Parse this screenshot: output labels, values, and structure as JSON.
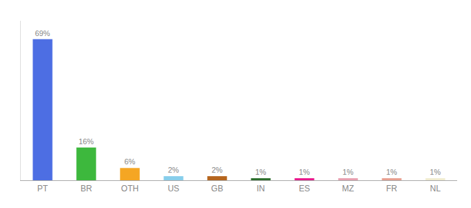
{
  "chart_data": {
    "type": "bar",
    "categories": [
      "PT",
      "BR",
      "OTH",
      "US",
      "GB",
      "IN",
      "ES",
      "MZ",
      "FR",
      "NL"
    ],
    "values": [
      69,
      16,
      6,
      2,
      2,
      1,
      1,
      1,
      1,
      1
    ],
    "value_labels": [
      "69%",
      "16%",
      "6%",
      "2%",
      "2%",
      "1%",
      "1%",
      "1%",
      "1%",
      "1%"
    ],
    "data_labels": true,
    "colors": [
      "#4d6ee3",
      "#3db83d",
      "#f5a623",
      "#87ceeb",
      "#b5651d",
      "#2d6e2d",
      "#e9198c",
      "#e8a0b0",
      "#e8a090",
      "#f0ecd0"
    ],
    "ylim": [
      0,
      78
    ],
    "yticks": [],
    "grid": false,
    "tick_labels": "x"
  }
}
